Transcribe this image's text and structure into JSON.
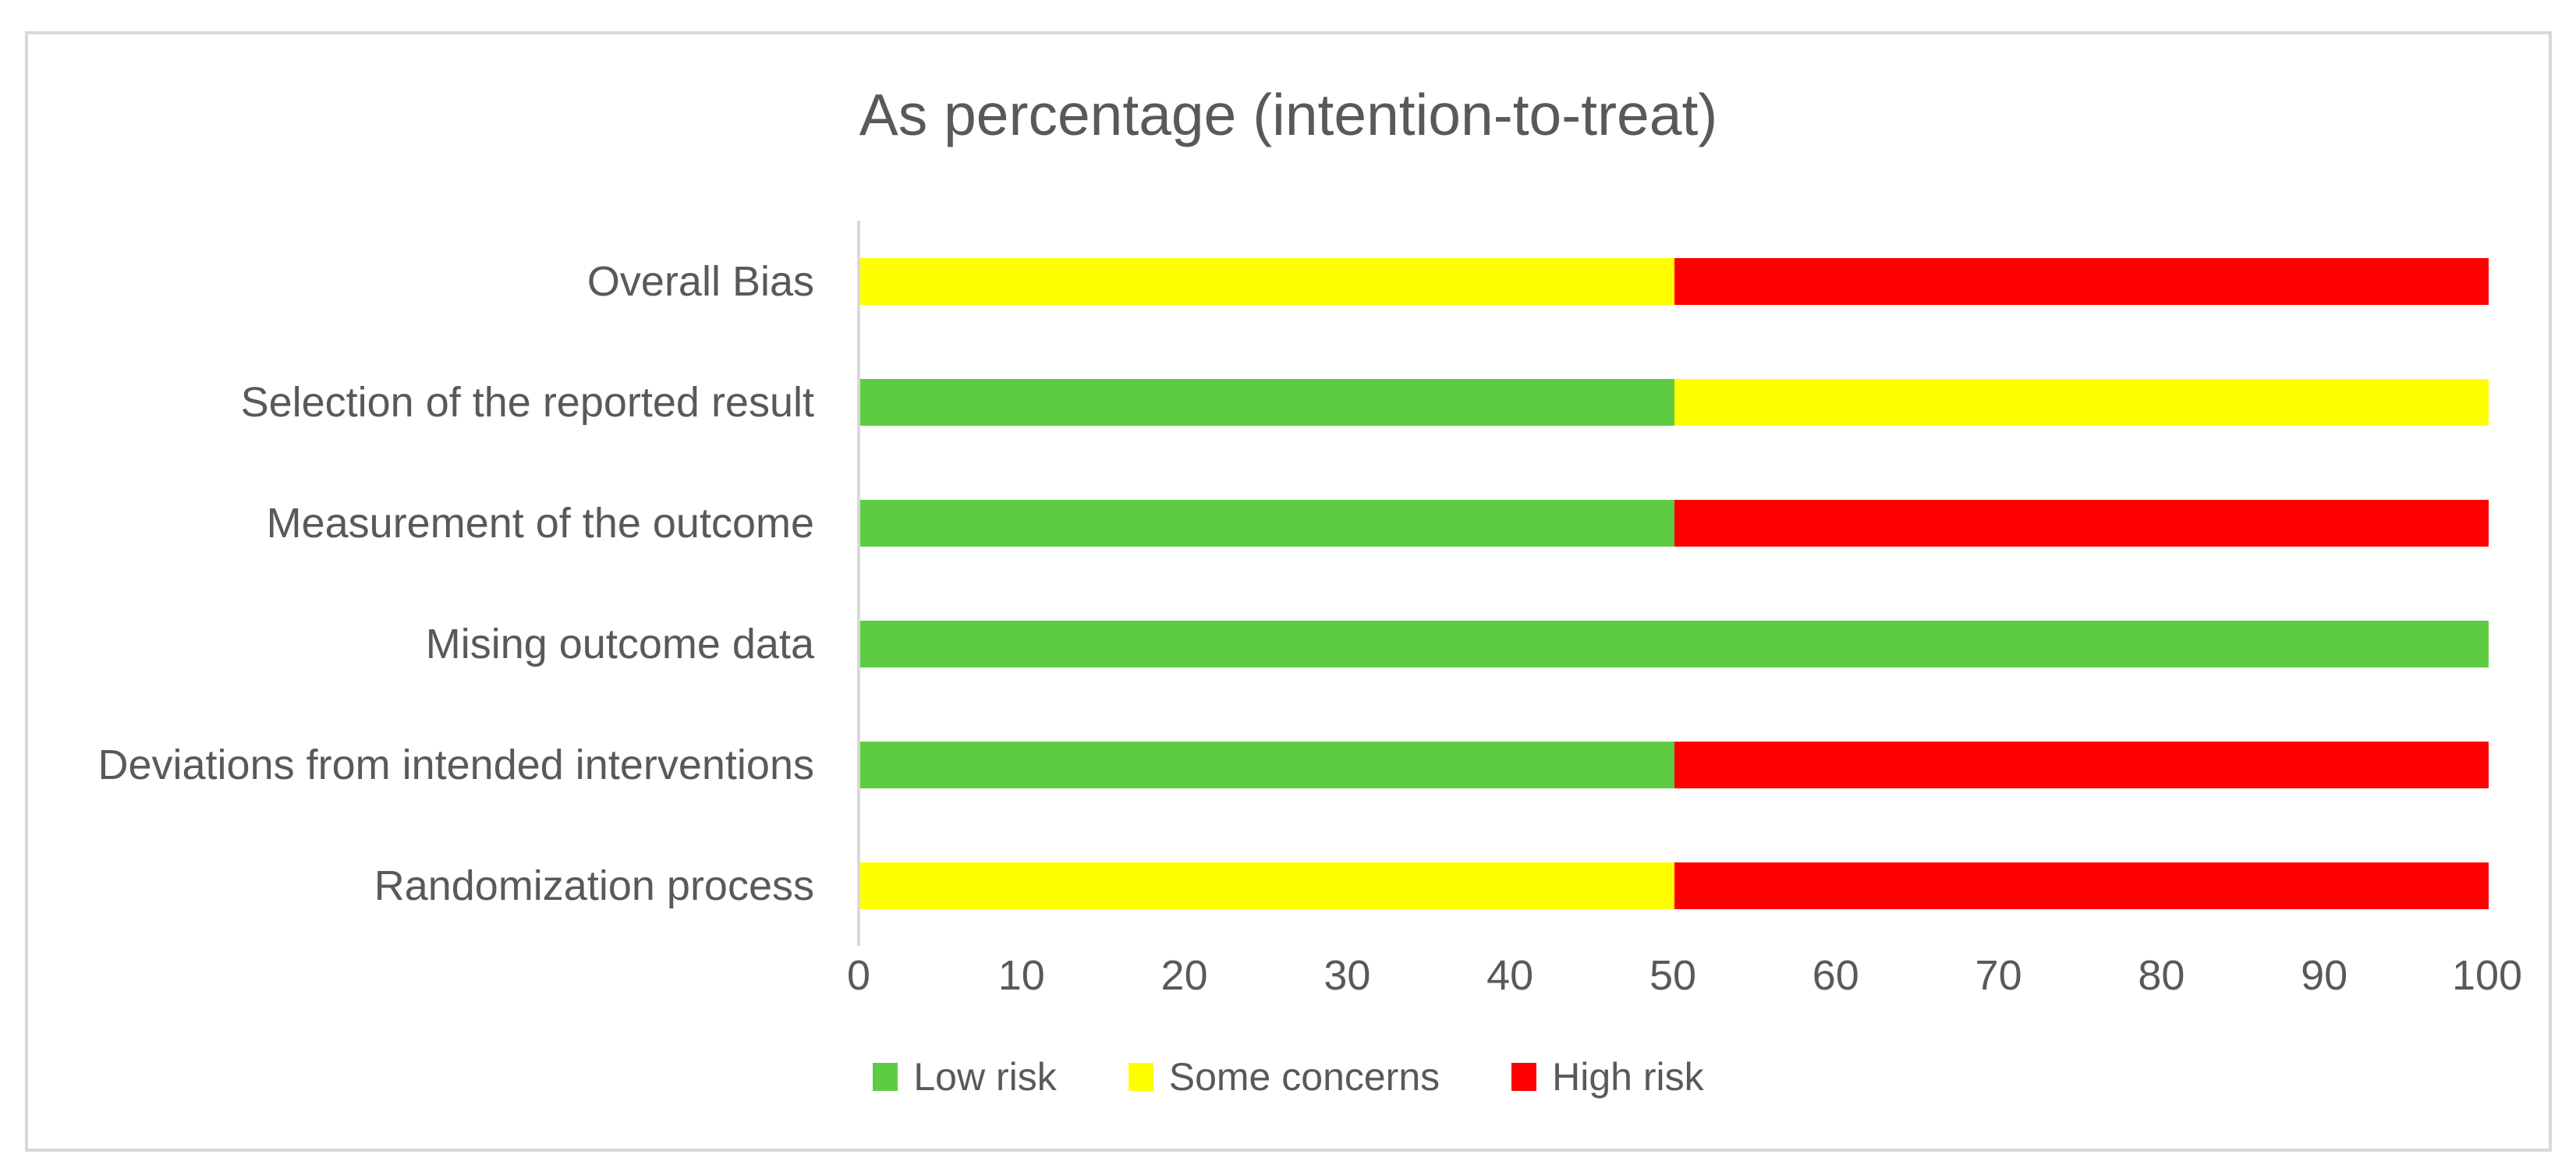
{
  "window": {
    "background_color": "#ffffff",
    "card_border_color": "#d9d9d9",
    "text_color": "#595959",
    "axis_line_color": "#d9d9d9"
  },
  "chart_data": {
    "type": "bar",
    "orientation": "horizontal",
    "stacked": true,
    "title": "As percentage (intention-to-treat)",
    "xlabel": "",
    "ylabel": "",
    "xlim": [
      0,
      100
    ],
    "x_ticks": [
      0,
      10,
      20,
      30,
      40,
      50,
      60,
      70,
      80,
      90,
      100
    ],
    "grid": false,
    "legend_position": "bottom",
    "categories": [
      "Overall Bias",
      "Selection of the reported result",
      "Measurement of the outcome",
      "Mising outcome data",
      "Deviations from intended interventions",
      "Randomization process"
    ],
    "series": [
      {
        "name": "Low risk",
        "color": "#5ecc42",
        "values": [
          0,
          50,
          50,
          100,
          50,
          0
        ]
      },
      {
        "name": "Some concerns",
        "color": "#ffff00",
        "values": [
          50,
          50,
          0,
          0,
          0,
          50
        ]
      },
      {
        "name": "High risk",
        "color": "#ff0000",
        "values": [
          50,
          0,
          50,
          0,
          50,
          50
        ]
      }
    ]
  }
}
